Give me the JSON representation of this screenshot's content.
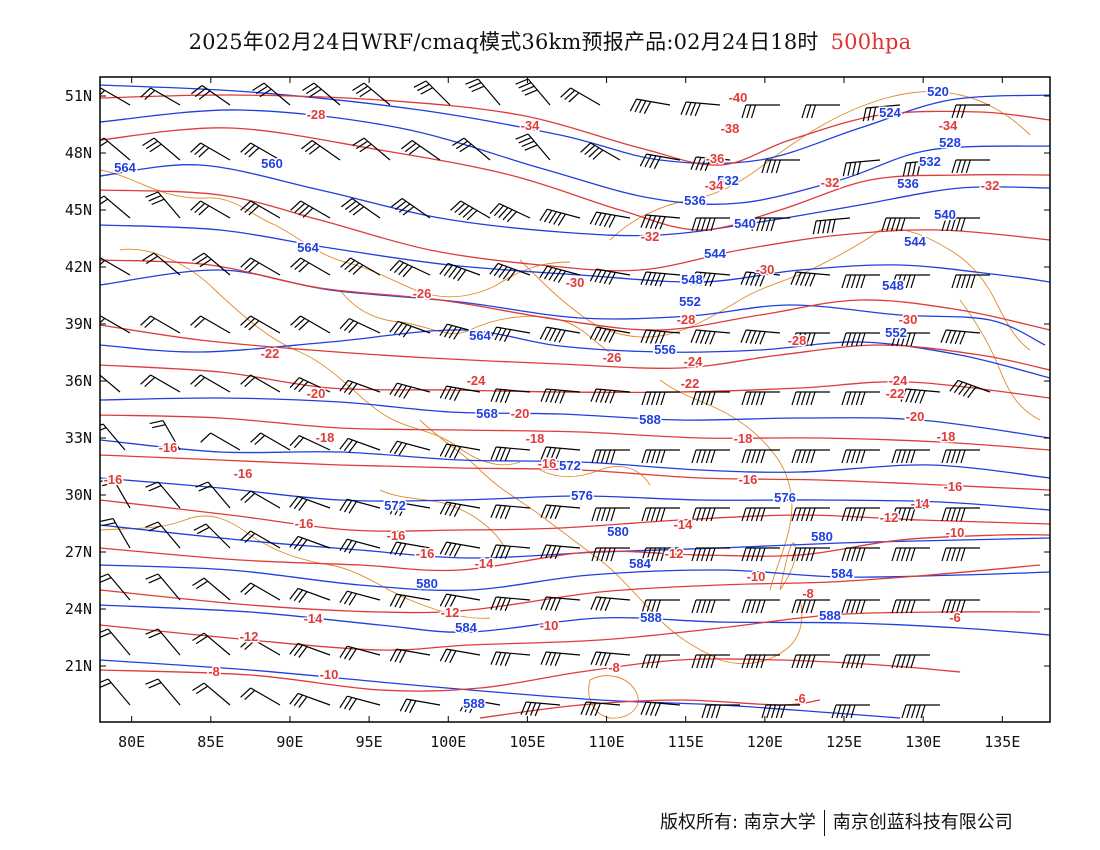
{
  "title": {
    "main": "2025年02月24日WRF/cmaq模式36km预报产品:02月24日18时",
    "level": "500hpa",
    "level_color": "#e03030"
  },
  "colors": {
    "height_contour": "#1f3fe0",
    "temperature_contour": "#e03a3a",
    "boundary": "#e08a2a",
    "wind_barb": "#000000"
  },
  "axes": {
    "lat_labels": [
      "51N",
      "48N",
      "45N",
      "42N",
      "39N",
      "36N",
      "33N",
      "30N",
      "27N",
      "24N",
      "21N"
    ],
    "lon_labels": [
      "80E",
      "85E",
      "90E",
      "95E",
      "100E",
      "105E",
      "110E",
      "115E",
      "120E",
      "125E",
      "130E",
      "135E"
    ]
  },
  "height_labels": [
    "520",
    "524",
    "528",
    "532",
    "536",
    "540",
    "544",
    "548",
    "552",
    "556",
    "560",
    "564",
    "568",
    "572",
    "576",
    "580",
    "584",
    "588"
  ],
  "temperature_labels": [
    "-40",
    "-38",
    "-36",
    "-34",
    "-32",
    "-30",
    "-28",
    "-26",
    "-24",
    "-22",
    "-20",
    "-18",
    "-16",
    "-14",
    "-12",
    "-10",
    "-8",
    "-6"
  ],
  "footer": {
    "copyright": "版权所有: 南京大学",
    "company": "南京创蓝科技有限公司"
  }
}
